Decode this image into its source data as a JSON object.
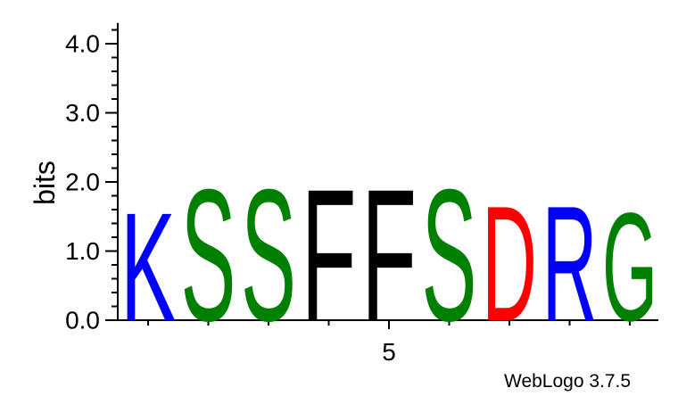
{
  "chart_data": {
    "type": "sequence-logo",
    "ylabel": "bits",
    "ylim": [
      0,
      4.3
    ],
    "y_ticks": [
      "0.0",
      "1.0",
      "2.0",
      "3.0",
      "4.0"
    ],
    "y_tick_values": [
      0,
      1,
      2,
      3,
      4
    ],
    "x_tick_label": "5",
    "x_tick_position": 5,
    "positions": [
      {
        "pos": 1,
        "letter": "K",
        "bits": 1.6,
        "color": "#0000ff"
      },
      {
        "pos": 2,
        "letter": "S",
        "bits": 1.95,
        "color": "#008000"
      },
      {
        "pos": 3,
        "letter": "S",
        "bits": 1.95,
        "color": "#008000"
      },
      {
        "pos": 4,
        "letter": "F",
        "bits": 1.95,
        "color": "#000000"
      },
      {
        "pos": 5,
        "letter": "F",
        "bits": 1.95,
        "color": "#000000"
      },
      {
        "pos": 6,
        "letter": "S",
        "bits": 1.95,
        "color": "#008000"
      },
      {
        "pos": 7,
        "letter": "D",
        "bits": 1.7,
        "color": "#ff0000"
      },
      {
        "pos": 8,
        "letter": "R",
        "bits": 1.7,
        "color": "#0000ff"
      },
      {
        "pos": 9,
        "letter": "G",
        "bits": 1.6,
        "color": "#008000"
      }
    ]
  },
  "footer": {
    "credit": "WebLogo 3.7.5"
  }
}
